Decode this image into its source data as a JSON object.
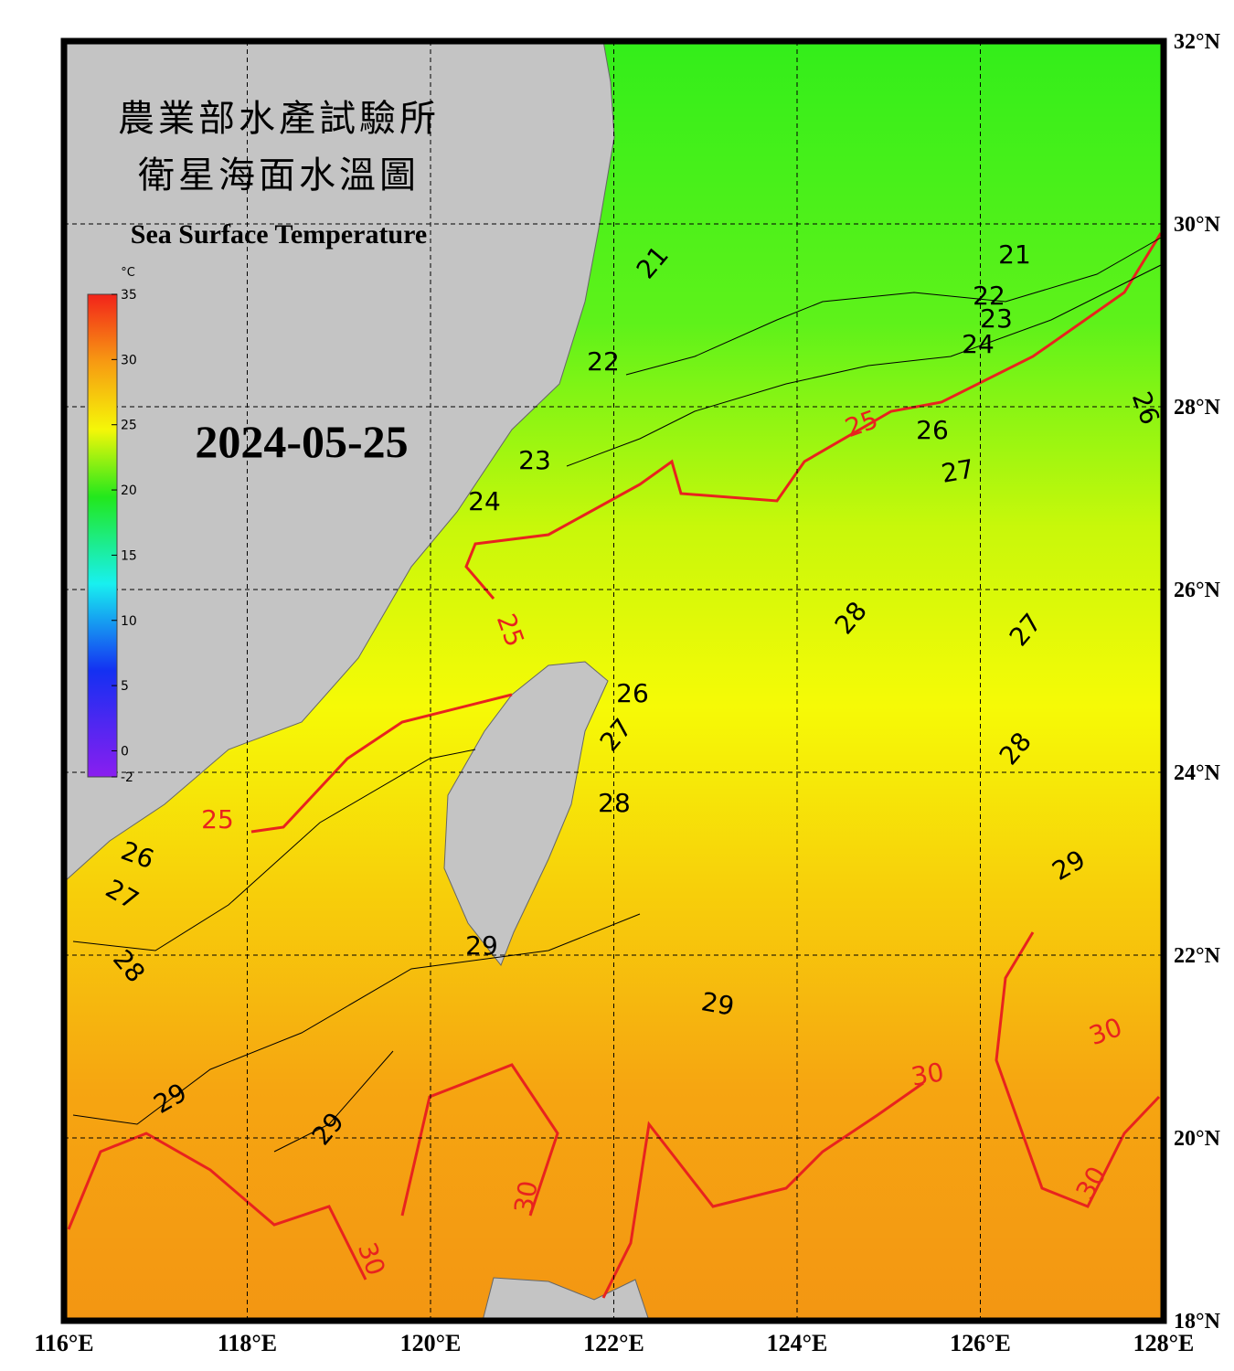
{
  "title_zh": "農業部水產試驗所",
  "subtitle_zh": "衛星海面水溫圖",
  "title_en": "Sea Surface Temperature",
  "date": "2024-05-25",
  "colorbar": {
    "unit": "°C",
    "range": [
      -2,
      35
    ],
    "ticks": [
      35,
      30,
      25,
      20,
      15,
      10,
      5,
      0,
      -2
    ]
  },
  "lon_ticks": [
    {
      "value": 116,
      "label": "116°E"
    },
    {
      "value": 118,
      "label": "118°E"
    },
    {
      "value": 120,
      "label": "120°E"
    },
    {
      "value": 122,
      "label": "122°E"
    },
    {
      "value": 124,
      "label": "124°E"
    },
    {
      "value": 126,
      "label": "126°E"
    },
    {
      "value": 128,
      "label": "128°E"
    }
  ],
  "lat_ticks": [
    {
      "value": 18,
      "label": "18°N"
    },
    {
      "value": 20,
      "label": "20°N"
    },
    {
      "value": 22,
      "label": "22°N"
    },
    {
      "value": 24,
      "label": "24°N"
    },
    {
      "value": 26,
      "label": "26°N"
    },
    {
      "value": 28,
      "label": "28°N"
    },
    {
      "value": 30,
      "label": "30°N"
    },
    {
      "value": 32,
      "label": "32°N"
    }
  ],
  "lon_range": [
    116,
    128
  ],
  "lat_range": [
    18,
    32
  ],
  "contour_labels": [
    {
      "value": 21,
      "color": "#000000"
    },
    {
      "value": 22,
      "color": "#000000"
    },
    {
      "value": 23,
      "color": "#000000"
    },
    {
      "value": 24,
      "color": "#000000"
    },
    {
      "value": 21,
      "color": "#000000"
    },
    {
      "value": 22,
      "color": "#000000"
    },
    {
      "value": 23,
      "color": "#000000"
    },
    {
      "value": 24,
      "color": "#000000"
    },
    {
      "value": 25,
      "color": "#e8231e"
    },
    {
      "value": 26,
      "color": "#000000"
    },
    {
      "value": 27,
      "color": "#000000"
    },
    {
      "value": 26,
      "color": "#000000"
    },
    {
      "value": 25,
      "color": "#e8231e"
    },
    {
      "value": 28,
      "color": "#000000"
    },
    {
      "value": 27,
      "color": "#000000"
    },
    {
      "value": 26,
      "color": "#000000"
    },
    {
      "value": 27,
      "color": "#000000"
    },
    {
      "value": 28,
      "color": "#000000"
    },
    {
      "value": 28,
      "color": "#000000"
    },
    {
      "value": 25,
      "color": "#e8231e"
    },
    {
      "value": 26,
      "color": "#000000"
    },
    {
      "value": 27,
      "color": "#000000"
    },
    {
      "value": 28,
      "color": "#000000"
    },
    {
      "value": 29,
      "color": "#000000"
    },
    {
      "value": 29,
      "color": "#000000"
    },
    {
      "value": 29,
      "color": "#000000"
    },
    {
      "value": 29,
      "color": "#000000"
    },
    {
      "value": 29,
      "color": "#000000"
    },
    {
      "value": 30,
      "color": "#e8231e"
    },
    {
      "value": 30,
      "color": "#e8231e"
    },
    {
      "value": 30,
      "color": "#e8231e"
    },
    {
      "value": 30,
      "color": "#e8231e"
    },
    {
      "value": 30,
      "color": "#e8231e"
    }
  ]
}
